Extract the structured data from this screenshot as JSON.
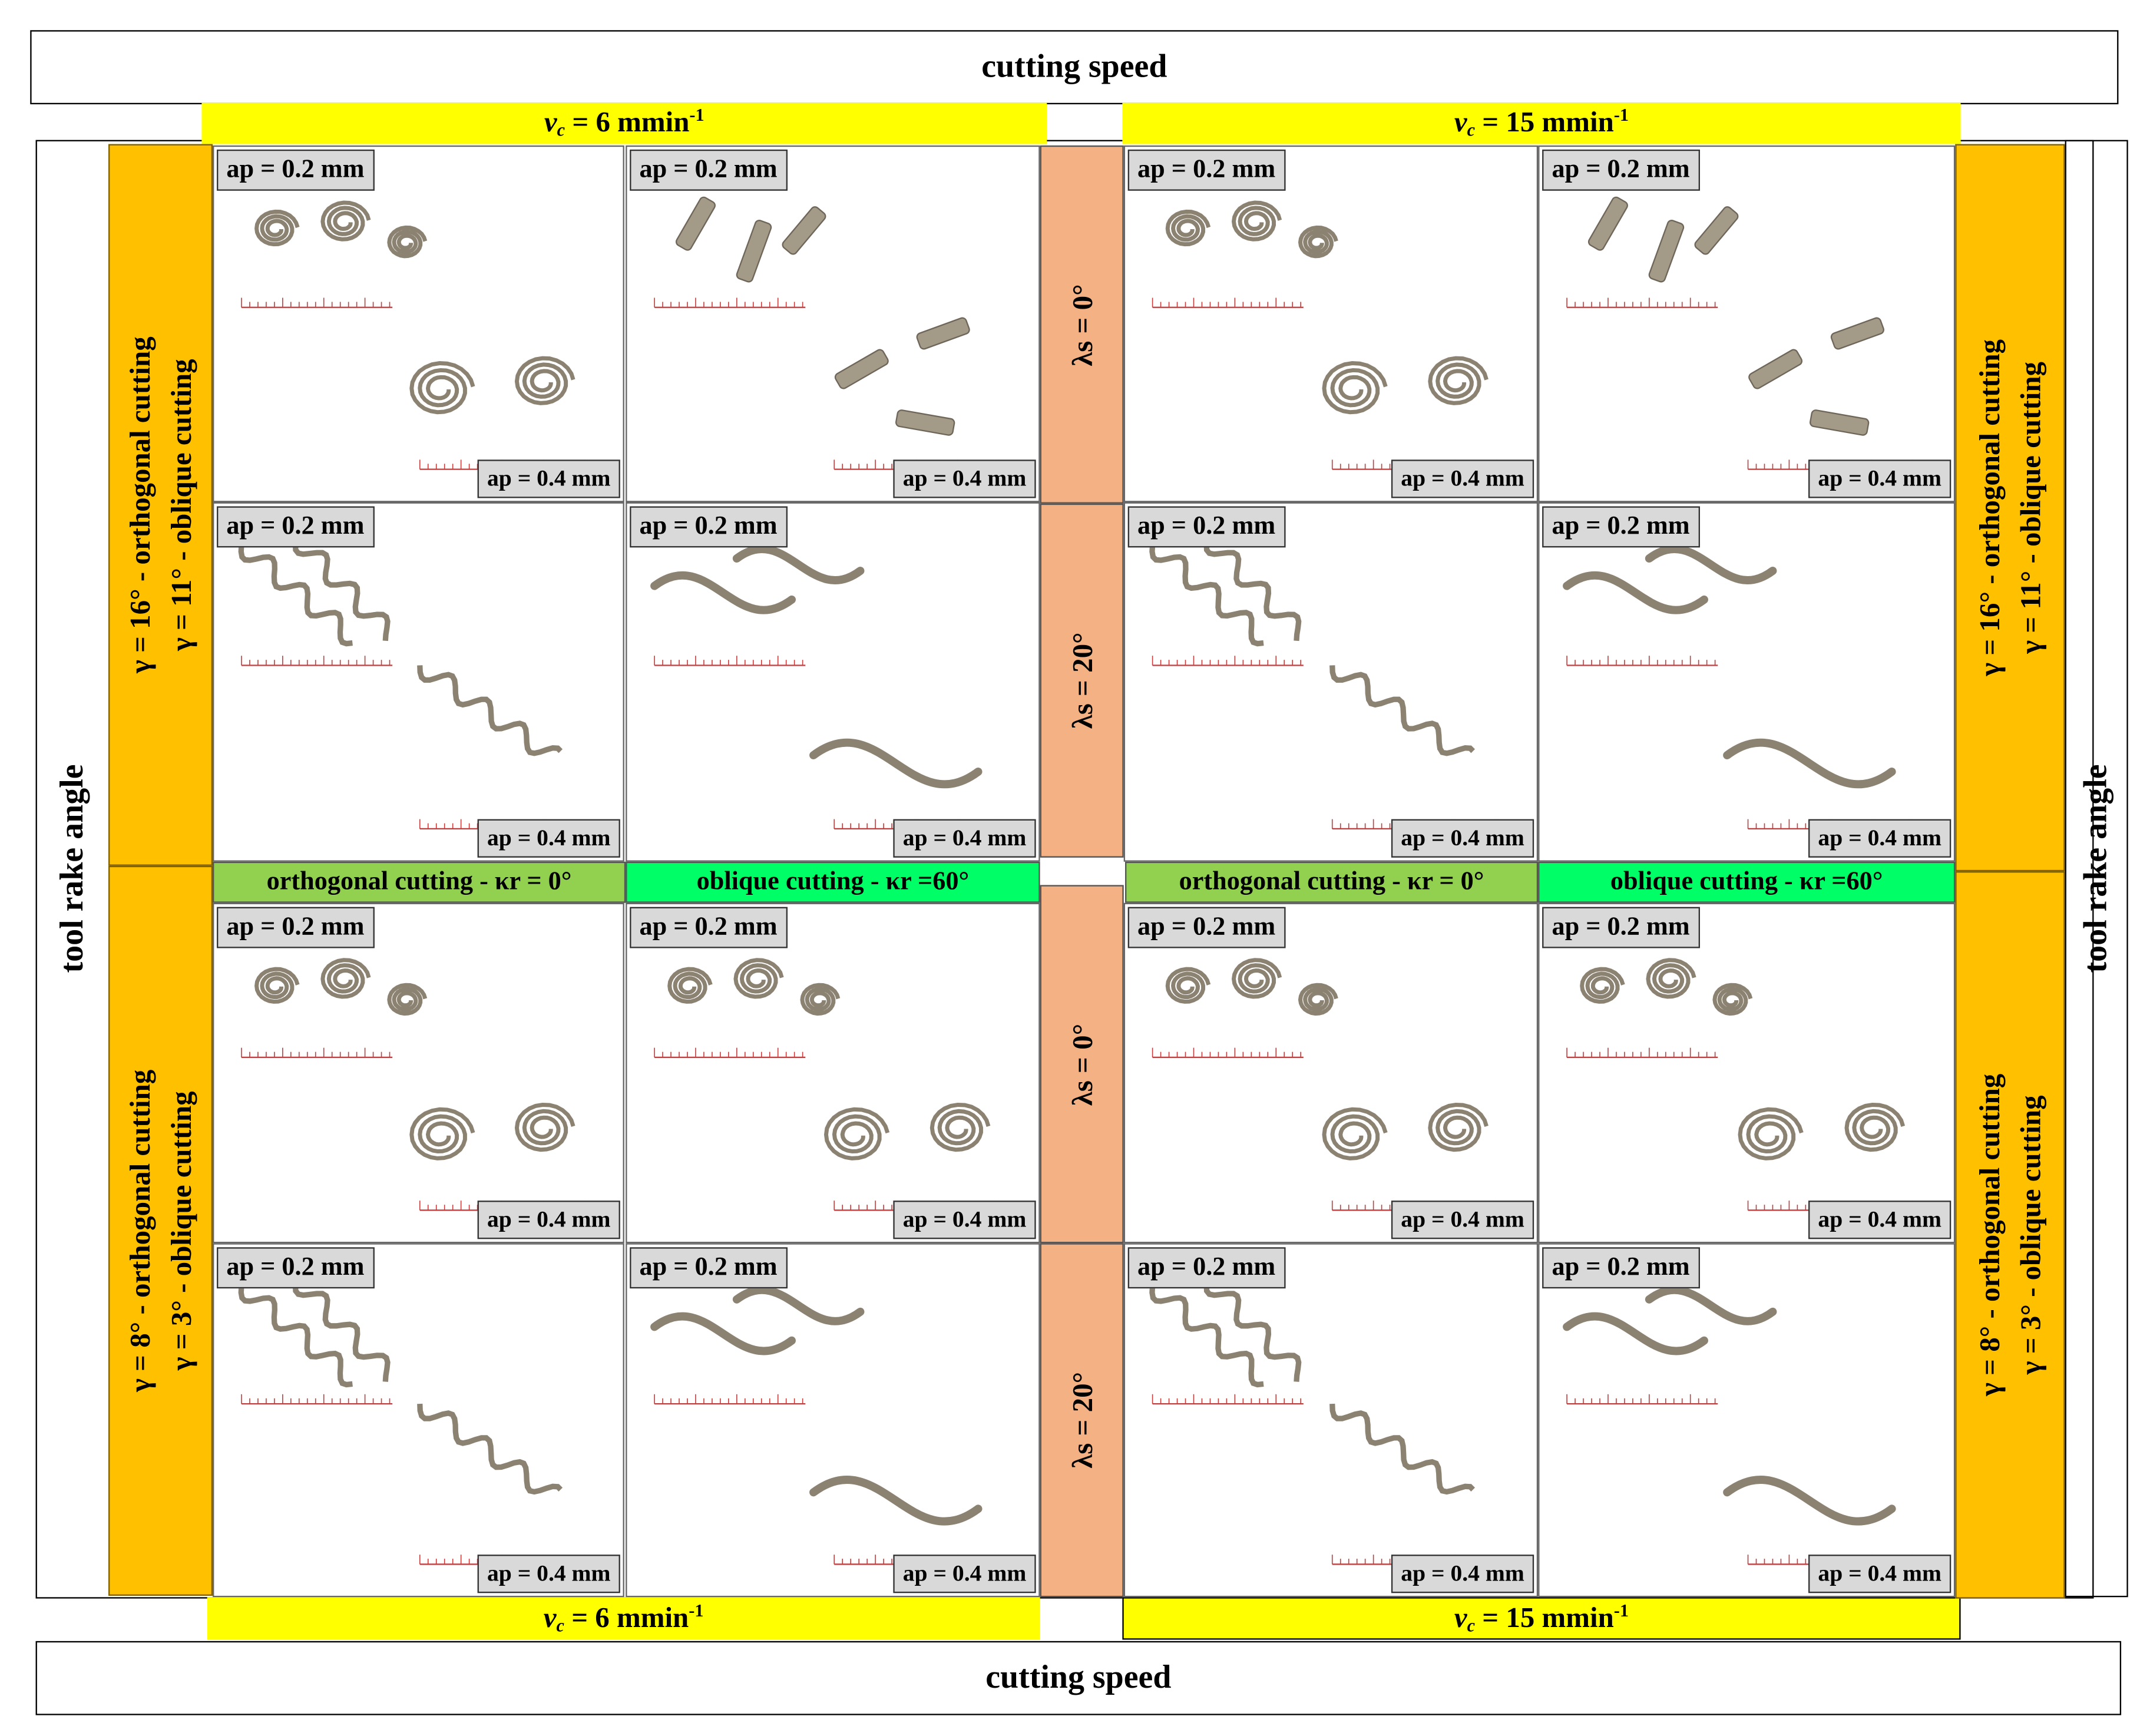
{
  "title_top": "cutting speed",
  "title_bottom": "cutting speed",
  "side_left": "tool rake angle",
  "side_right": "tool rake angle",
  "speed": {
    "left": {
      "symbol": "v",
      "sub": "c",
      "value": "= 6 mmin",
      "exp": "-1"
    },
    "right": {
      "symbol": "v",
      "sub": "c",
      "value": "= 15 mmin",
      "exp": "-1"
    }
  },
  "rake": {
    "upper": {
      "line1": "γ = 16° - orthogonal cutting",
      "line2": "γ = 11° - oblique cutting"
    },
    "lower": {
      "line1": "γ = 8° - orthogonal cutting",
      "line2": "γ = 3° - oblique cutting"
    }
  },
  "inclination": {
    "zero": "λs = 0°",
    "twenty": "λs = 20°"
  },
  "cutting_modes": {
    "orthogonal": "orthogonal cutting - κr = 0°",
    "oblique": "oblique cutting - κr =60°"
  },
  "depth": {
    "small": "ap = 0.2 mm",
    "large": "ap = 0.4 mm"
  },
  "colors": {
    "yellow": "#ffff00",
    "orange": "#ffc000",
    "salmon": "#f4b183",
    "green_light": "#92d050",
    "green_bright": "#00ff66",
    "label_gray": "#d9d9d9",
    "chip_metal": "#8c8272"
  },
  "chip_photos": [
    {
      "id": "A1",
      "chip_form": "spiral"
    },
    {
      "id": "B1",
      "chip_form": "tubular"
    },
    {
      "id": "C1",
      "chip_form": "spiral"
    },
    {
      "id": "D1",
      "chip_form": "tubular"
    },
    {
      "id": "A2",
      "chip_form": "helical"
    },
    {
      "id": "B2",
      "chip_form": "ribbon"
    },
    {
      "id": "C2",
      "chip_form": "helical"
    },
    {
      "id": "D2",
      "chip_form": "ribbon"
    },
    {
      "id": "A3",
      "chip_form": "spiral"
    },
    {
      "id": "B3",
      "chip_form": "spiral"
    },
    {
      "id": "C3",
      "chip_form": "spiral"
    },
    {
      "id": "D3",
      "chip_form": "spiral"
    },
    {
      "id": "A4",
      "chip_form": "helical"
    },
    {
      "id": "B4",
      "chip_form": "ribbon"
    },
    {
      "id": "C4",
      "chip_form": "helical"
    },
    {
      "id": "D4",
      "chip_form": "ribbon"
    }
  ]
}
